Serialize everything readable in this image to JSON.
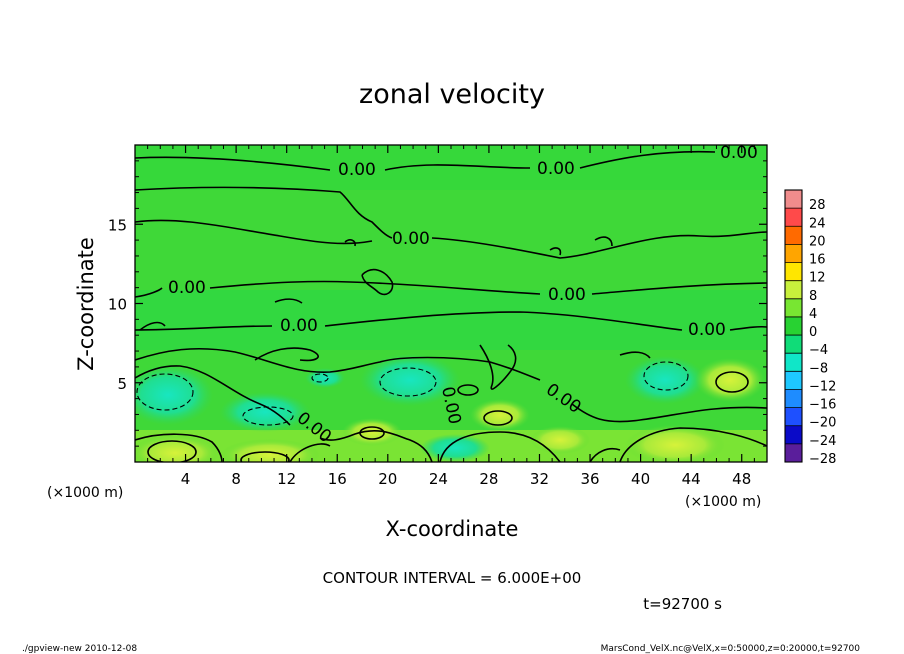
{
  "chart_data": {
    "type": "heatmap",
    "title": "zonal velocity",
    "xlabel": "X-coordinate",
    "ylabel": "Z-coordinate",
    "x_unit_label": "(×1000 m)",
    "y_unit_label": "(×1000 m)",
    "xlim": [
      0,
      50
    ],
    "ylim": [
      0,
      20
    ],
    "x_ticks": [
      "4",
      "8",
      "12",
      "16",
      "20",
      "24",
      "28",
      "32",
      "36",
      "40",
      "44",
      "48"
    ],
    "y_ticks": [
      "5",
      "10",
      "15"
    ],
    "colorbar_levels": [
      "28",
      "24",
      "20",
      "16",
      "12",
      "8",
      "4",
      "0",
      "−4",
      "−8",
      "−12",
      "−16",
      "−20",
      "−24",
      "−28"
    ],
    "colorbar_colors": [
      "#f08c8c",
      "#ff4a4a",
      "#ff6a00",
      "#ffa500",
      "#ffe600",
      "#c8f03c",
      "#78e632",
      "#28d232",
      "#10dc78",
      "#10e6c8",
      "#1ec8ff",
      "#1e8cff",
      "#1e50ff",
      "#0a0ac8",
      "#5a1e9b"
    ],
    "contour_labels": [
      "0.00",
      "0.00",
      "0.00",
      "0.00",
      "0.00",
      "0.00",
      "0.00",
      "0.00",
      "0.00",
      "0.00"
    ],
    "grid": false
  },
  "footer": {
    "contour_interval": "CONTOUR INTERVAL = 6.000E+00",
    "time": "t=92700 s",
    "program": "./gpview-new   2010-12-08",
    "source": "MarsCond_VelX.nc@VelX,x=0:50000,z=0:20000,t=92700"
  }
}
